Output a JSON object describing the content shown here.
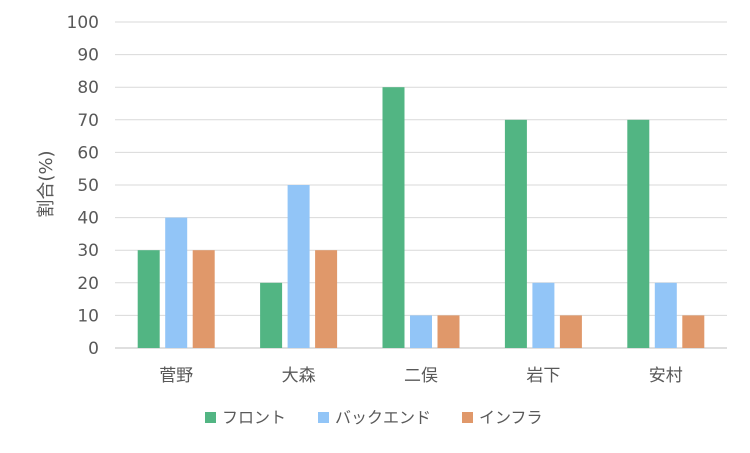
{
  "chart_data": {
    "type": "bar",
    "title": "",
    "xlabel": "",
    "ylabel": "割合(%)",
    "ylim": [
      0,
      100
    ],
    "ytick_step": 10,
    "grid": true,
    "legend_position": "bottom",
    "categories": [
      "菅野",
      "大森",
      "二俣",
      "岩下",
      "安村"
    ],
    "series": [
      {
        "name": "フロント",
        "color": "#52b583",
        "values": [
          30,
          20,
          80,
          70,
          70
        ]
      },
      {
        "name": "バックエンド",
        "color": "#92c5f7",
        "values": [
          40,
          50,
          10,
          20,
          20
        ]
      },
      {
        "name": "インフラ",
        "color": "#e0986a",
        "values": [
          30,
          30,
          10,
          10,
          10
        ]
      }
    ]
  }
}
